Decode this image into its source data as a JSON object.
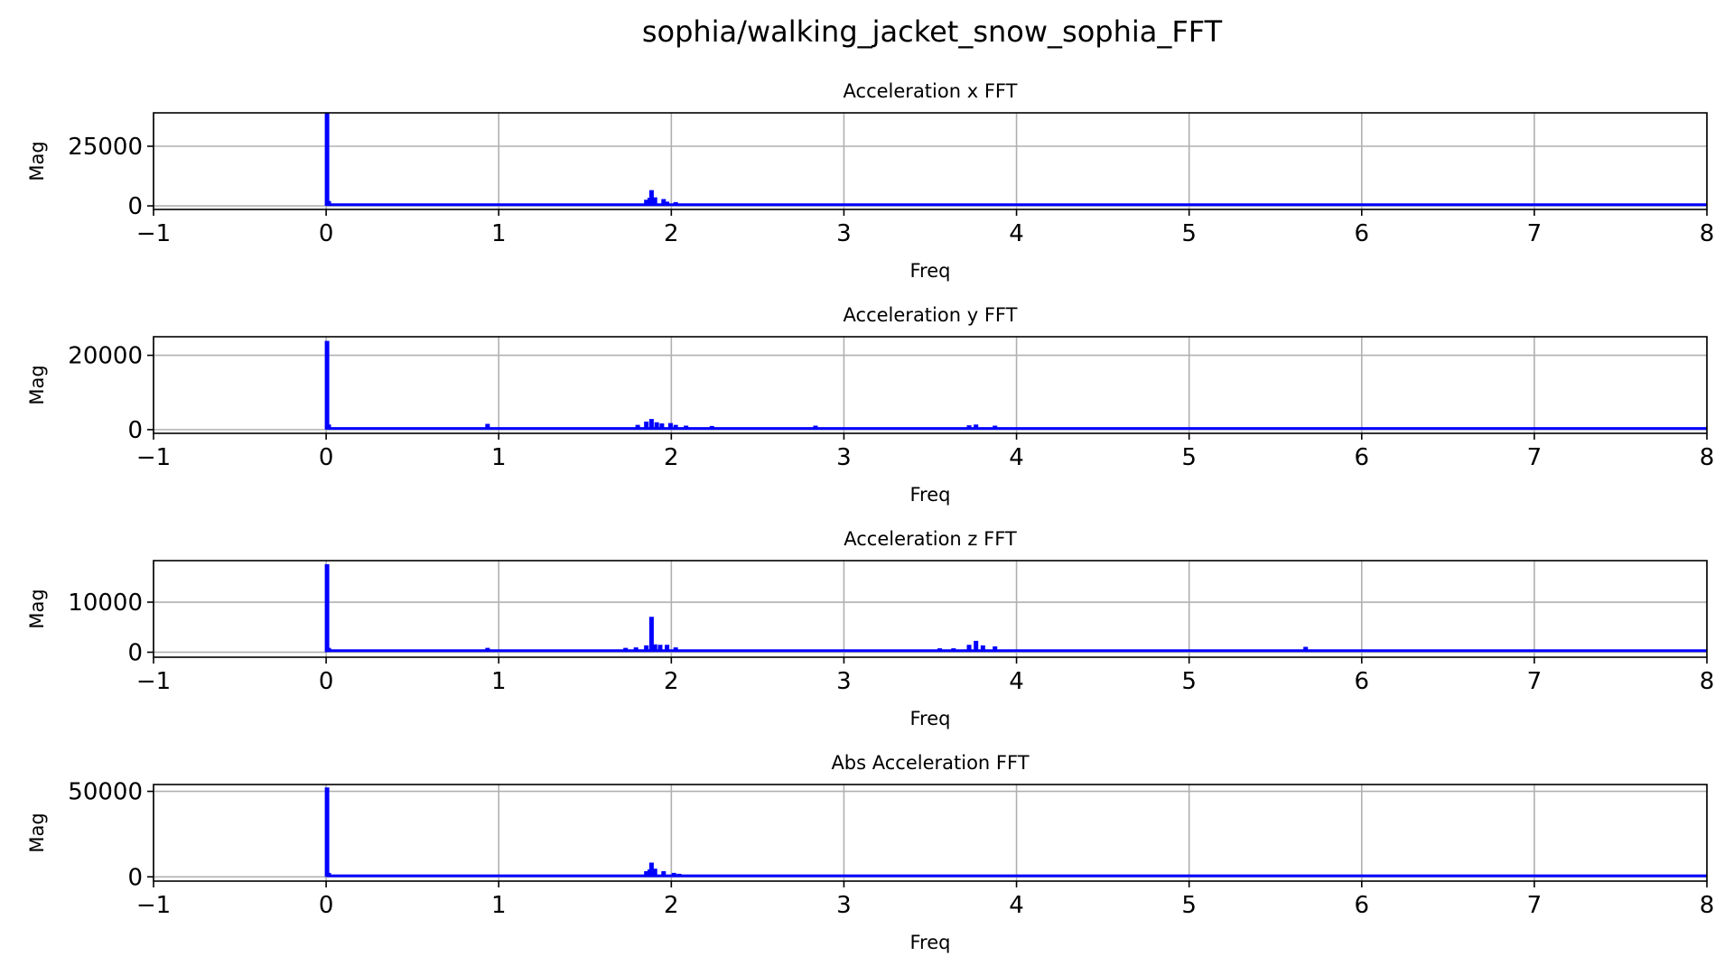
{
  "figure": {
    "suptitle": "sophia/walking_jacket_snow_sophia_FFT"
  },
  "colors": {
    "line": "#0000ff",
    "grid": "#b0b0b0",
    "axes": "#000000"
  },
  "chart_data": [
    {
      "type": "line",
      "title": "Acceleration x FFT",
      "xlabel": "Freq",
      "ylabel": "Mag",
      "xlim": [
        -1,
        8
      ],
      "ylim": [
        -1500,
        39000
      ],
      "xticks": [
        -1,
        0,
        1,
        2,
        3,
        4,
        5,
        6,
        7,
        8
      ],
      "xtick_labels": [
        "−1",
        "0",
        "1",
        "2",
        "3",
        "4",
        "5",
        "6",
        "7",
        "8"
      ],
      "yticks": [
        0,
        25000
      ],
      "ytick_labels": [
        "0",
        "25000"
      ],
      "grid": true,
      "series": [
        {
          "baseline": 500,
          "x_end": 8,
          "peaks": [
            {
              "x": 0.0,
              "y": 38500
            },
            {
              "x": 0.01,
              "y": 1500
            },
            {
              "x": 1.85,
              "y": 2000
            },
            {
              "x": 1.87,
              "y": 2800
            },
            {
              "x": 1.88,
              "y": 6000
            },
            {
              "x": 1.9,
              "y": 3000
            },
            {
              "x": 1.95,
              "y": 2300
            },
            {
              "x": 1.97,
              "y": 1200
            },
            {
              "x": 2.02,
              "y": 1000
            }
          ]
        }
      ]
    },
    {
      "type": "line",
      "title": "Acceleration y FFT",
      "xlabel": "Freq",
      "ylabel": "Mag",
      "xlim": [
        -1,
        8
      ],
      "ylim": [
        -1000,
        25000
      ],
      "xticks": [
        -1,
        0,
        1,
        2,
        3,
        4,
        5,
        6,
        7,
        8
      ],
      "xtick_labels": [
        "−1",
        "0",
        "1",
        "2",
        "3",
        "4",
        "5",
        "6",
        "7",
        "8"
      ],
      "yticks": [
        0,
        20000
      ],
      "ytick_labels": [
        "0",
        "20000"
      ],
      "grid": true,
      "series": [
        {
          "baseline": 300,
          "x_end": 8,
          "peaks": [
            {
              "x": 0.0,
              "y": 23500
            },
            {
              "x": 0.01,
              "y": 1000
            },
            {
              "x": 0.93,
              "y": 1200
            },
            {
              "x": 1.8,
              "y": 900
            },
            {
              "x": 1.85,
              "y": 1800
            },
            {
              "x": 1.88,
              "y": 2500
            },
            {
              "x": 1.91,
              "y": 1600
            },
            {
              "x": 1.94,
              "y": 1300
            },
            {
              "x": 1.99,
              "y": 1400
            },
            {
              "x": 2.02,
              "y": 900
            },
            {
              "x": 2.08,
              "y": 700
            },
            {
              "x": 2.23,
              "y": 600
            },
            {
              "x": 2.83,
              "y": 700
            },
            {
              "x": 3.72,
              "y": 800
            },
            {
              "x": 3.76,
              "y": 1000
            },
            {
              "x": 3.87,
              "y": 700
            }
          ]
        }
      ]
    },
    {
      "type": "line",
      "title": "Acceleration z FFT",
      "xlabel": "Freq",
      "ylabel": "Mag",
      "xlim": [
        -1,
        8
      ],
      "ylim": [
        -1000,
        18300
      ],
      "xticks": [
        -1,
        0,
        1,
        2,
        3,
        4,
        5,
        6,
        7,
        8
      ],
      "xtick_labels": [
        "−1",
        "0",
        "1",
        "2",
        "3",
        "4",
        "5",
        "6",
        "7",
        "8"
      ],
      "yticks": [
        0,
        10000
      ],
      "ytick_labels": [
        "0",
        "10000"
      ],
      "grid": true,
      "series": [
        {
          "baseline": 300,
          "x_end": 8,
          "peaks": [
            {
              "x": 0.0,
              "y": 17300
            },
            {
              "x": 0.01,
              "y": 600
            },
            {
              "x": 0.93,
              "y": 600
            },
            {
              "x": 1.73,
              "y": 600
            },
            {
              "x": 1.79,
              "y": 700
            },
            {
              "x": 1.85,
              "y": 1100
            },
            {
              "x": 1.88,
              "y": 6800
            },
            {
              "x": 1.9,
              "y": 1300
            },
            {
              "x": 1.93,
              "y": 1200
            },
            {
              "x": 1.97,
              "y": 1200
            },
            {
              "x": 2.02,
              "y": 700
            },
            {
              "x": 3.55,
              "y": 500
            },
            {
              "x": 3.63,
              "y": 500
            },
            {
              "x": 3.72,
              "y": 1200
            },
            {
              "x": 3.76,
              "y": 2000
            },
            {
              "x": 3.8,
              "y": 1100
            },
            {
              "x": 3.87,
              "y": 900
            },
            {
              "x": 5.67,
              "y": 800
            }
          ]
        }
      ]
    },
    {
      "type": "line",
      "title": "Abs Acceleration FFT",
      "xlabel": "Freq",
      "ylabel": "Mag",
      "xlim": [
        -1,
        8
      ],
      "ylim": [
        -2500,
        54000
      ],
      "xticks": [
        -1,
        0,
        1,
        2,
        3,
        4,
        5,
        6,
        7,
        8
      ],
      "xtick_labels": [
        "−1",
        "0",
        "1",
        "2",
        "3",
        "4",
        "5",
        "6",
        "7",
        "8"
      ],
      "yticks": [
        0,
        50000
      ],
      "ytick_labels": [
        "0",
        "50000"
      ],
      "grid": true,
      "series": [
        {
          "baseline": 600,
          "x_end": 8,
          "peaks": [
            {
              "x": 0.0,
              "y": 51500
            },
            {
              "x": 0.01,
              "y": 1500
            },
            {
              "x": 1.85,
              "y": 2500
            },
            {
              "x": 1.87,
              "y": 3500
            },
            {
              "x": 1.88,
              "y": 7500
            },
            {
              "x": 1.9,
              "y": 4000
            },
            {
              "x": 1.95,
              "y": 2500
            },
            {
              "x": 2.01,
              "y": 1500
            },
            {
              "x": 2.04,
              "y": 1000
            }
          ]
        }
      ]
    }
  ]
}
